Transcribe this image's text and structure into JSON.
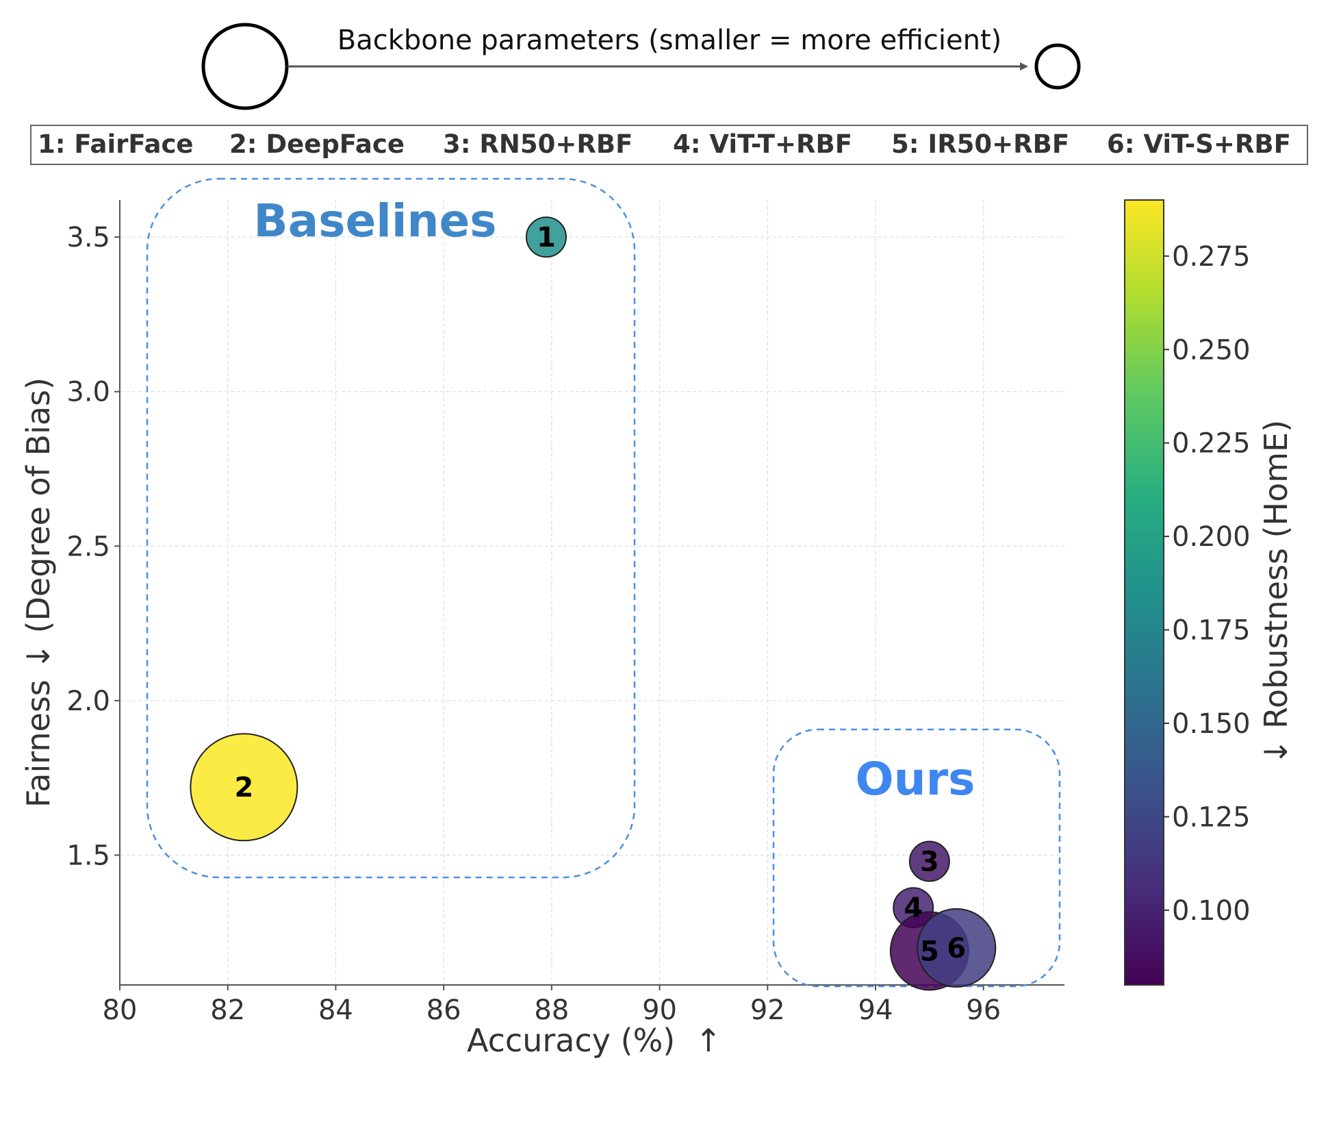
{
  "header": {
    "size_label": "Backbone parameters (smaller = more efficient)"
  },
  "legend": {
    "items": [
      "1: FairFace",
      "2: DeepFace",
      "3: RN50+RBF",
      "4: ViT-T+RBF",
      "5: IR50+RBF",
      "6: ViT-S+RBF"
    ]
  },
  "groups": {
    "baselines_label": "Baselines",
    "ours_label": "Ours"
  },
  "chart_data": {
    "type": "scatter",
    "xlabel": "Accuracy (%)  ↑",
    "ylabel": "Fairness ↓ (Degree of Bias)",
    "xlim": [
      80,
      97.5
    ],
    "ylim": [
      1.08,
      3.62
    ],
    "xticks": [
      80,
      82,
      84,
      86,
      88,
      90,
      92,
      94,
      96
    ],
    "yticks": [
      1.5,
      2.0,
      2.5,
      3.0,
      3.5
    ],
    "grid": true,
    "colorbar": {
      "label": "↓ Robustness (HomE)",
      "range": [
        0.08,
        0.29
      ],
      "ticks": [
        0.1,
        0.125,
        0.15,
        0.175,
        0.2,
        0.225,
        0.25,
        0.275
      ],
      "tick_labels": [
        "0.100",
        "0.125",
        "0.150",
        "0.175",
        "0.200",
        "0.225",
        "0.250",
        "0.275"
      ]
    },
    "points": [
      {
        "label": "1",
        "x": 87.9,
        "y": 3.5,
        "robustness": 0.185,
        "size": "small"
      },
      {
        "label": "2",
        "x": 82.3,
        "y": 1.72,
        "robustness": 0.29,
        "size": "large"
      },
      {
        "label": "3",
        "x": 95.0,
        "y": 1.48,
        "robustness": 0.095,
        "size": "small"
      },
      {
        "label": "4",
        "x": 94.7,
        "y": 1.33,
        "robustness": 0.1,
        "size": "small"
      },
      {
        "label": "5",
        "x": 95.0,
        "y": 1.19,
        "robustness": 0.082,
        "size": "medium"
      },
      {
        "label": "6",
        "x": 95.5,
        "y": 1.2,
        "robustness": 0.118,
        "size": "medium"
      }
    ],
    "colors": {
      "group_box": "#4a90e2",
      "baselines_text": "#3f87c9",
      "ours_text": "#3f87f0"
    }
  }
}
